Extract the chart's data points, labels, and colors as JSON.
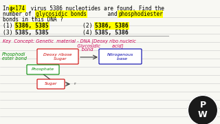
{
  "bg_color": "#f8f8f3",
  "question_line1": "In ϕ×174 virus 5386 nucleotides are found. Find the",
  "question_line2a": "number of ",
  "question_line2b": "glycosidic bonds",
  "question_line2c": " and ",
  "question_line2d": "phosphodiester",
  "question_line3": "bonds in this DNA ?",
  "opt1_num": "(1)",
  "opt1_val": "5386, 5385",
  "opt2_num": "(2)",
  "opt2_val": "5386, 5386",
  "opt3_num": "(3)",
  "opt3_val": "5385, 5385",
  "opt4_num": "(4)",
  "opt4_val": "5385, 5386",
  "key_line1": "Key  Concept: Genetic  material - DNA [Deoxy ribo nucleic",
  "key_line2": "                                                   Glycosidic        acid]",
  "key_line3": "                                                      bond",
  "phospho_label1": "Phosphodi",
  "phospho_label2": "ester bond",
  "box1_line1": "Deoxy ribose",
  "box1_line2": "   Sugar",
  "box2_line1": "Nitrogenous",
  "box2_line2": "   base",
  "phosphate_label": "Phosphate",
  "sugar_label": "Sugar",
  "arrow_r": "r",
  "highlight_yellow": "#ffff00",
  "red_color": "#cc0000",
  "green_color": "#008800",
  "blue_color": "#0000aa",
  "pink_color": "#cc0055",
  "dark_color": "#1a1a1a",
  "line_color": "#c8c8c8",
  "sep_color": "#aaaaaa"
}
